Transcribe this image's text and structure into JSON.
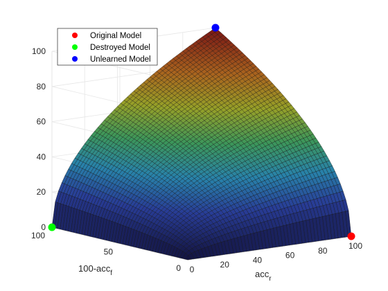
{
  "chart_data": {
    "type": "surface",
    "title": "",
    "xlabel": "acc",
    "xlabel_sub": "r",
    "ylabel": "100-acc",
    "ylabel_sub": "f",
    "zlabel": "",
    "xlim": [
      0,
      100
    ],
    "ylim": [
      0,
      100
    ],
    "zlim": [
      0,
      100
    ],
    "x_ticks": [
      "0",
      "20",
      "40",
      "60",
      "80",
      "100"
    ],
    "y_ticks": [
      "0",
      "50",
      "100"
    ],
    "z_ticks": [
      "0",
      "20",
      "40",
      "60",
      "80",
      "100"
    ],
    "grid": true,
    "colormap": "jet-dark",
    "surface_formula": "z = 100 * (x * y / 10000) ^ 0.5",
    "legend": {
      "position": "top-left",
      "entries": [
        {
          "name": "Original Model",
          "color": "#ff0000"
        },
        {
          "name": "Destroyed Model",
          "color": "#00ff00"
        },
        {
          "name": "Unlearned Model",
          "color": "#0000ff"
        }
      ]
    },
    "points": [
      {
        "name": "Original Model",
        "x": 100,
        "y": 0,
        "z": 0,
        "color": "#ff0000"
      },
      {
        "name": "Destroyed Model",
        "x": 0,
        "y": 100,
        "z": 0,
        "color": "#00ff00"
      },
      {
        "name": "Unlearned Model",
        "x": 100,
        "y": 100,
        "z": 100,
        "color": "#0000ff"
      }
    ]
  }
}
